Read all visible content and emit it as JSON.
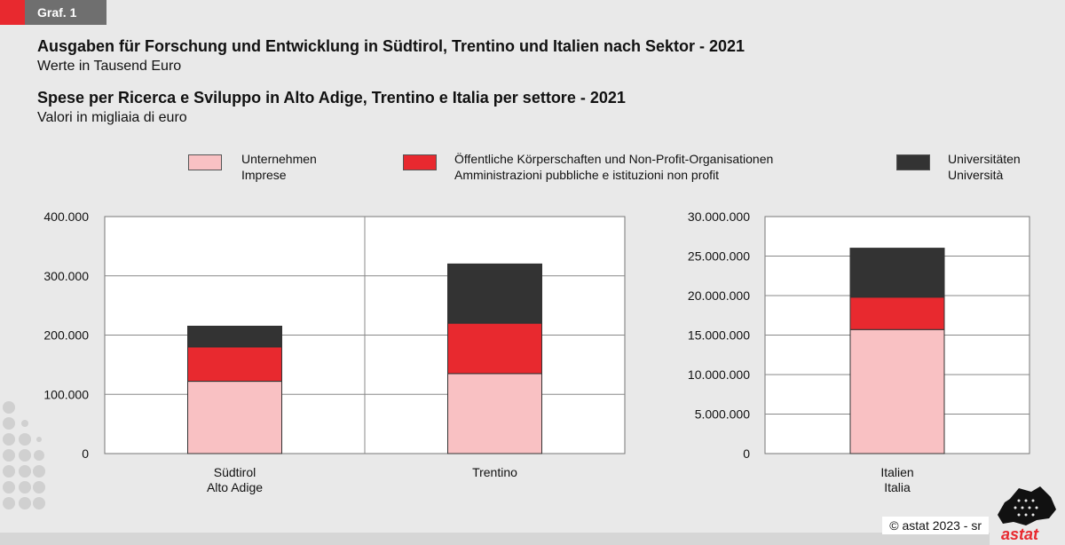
{
  "header": {
    "graf_label": "Graf. 1",
    "title_de": "Ausgaben für Forschung und Entwicklung in Südtirol, Trentino und Italien nach Sektor - 2021",
    "subtitle_de": "Werte in Tausend Euro",
    "title_it": "Spese per Ricerca e Sviluppo in Alto Adige, Trentino e Italia per settore - 2021",
    "subtitle_it": "Valori in migliaia di euro"
  },
  "legend": [
    {
      "line1": "Unternehmen",
      "line2": "Imprese",
      "color": "#f9c1c3"
    },
    {
      "line1": "Öffentliche Körperschaften und Non-Profit-Organisationen",
      "line2": "Amministrazioni pubbliche e istituzioni non profit",
      "color": "#e8292f"
    },
    {
      "line1": "Universitäten",
      "line2": "Università",
      "color": "#333333"
    }
  ],
  "chart_data": [
    {
      "type": "bar",
      "stacked": true,
      "categories": [
        [
          "Südtirol",
          "Alto Adige"
        ],
        [
          "Trentino"
        ]
      ],
      "series": [
        {
          "name": "Unternehmen / Imprese",
          "values": [
            122000,
            135000
          ]
        },
        {
          "name": "Öffentliche Körperschaften und Non-Profit-Organisationen / Amministrazioni pubbliche e istituzioni non profit",
          "values": [
            58000,
            85000
          ]
        },
        {
          "name": "Universitäten / Università",
          "values": [
            35000,
            100000
          ]
        }
      ],
      "ylim": [
        0,
        400000
      ],
      "yticks": [
        "0",
        "100.000",
        "200.000",
        "300.000",
        "400.000"
      ],
      "grid": true
    },
    {
      "type": "bar",
      "stacked": true,
      "categories": [
        [
          "Italien",
          "Italia"
        ]
      ],
      "series": [
        {
          "name": "Unternehmen / Imprese",
          "values": [
            15700000
          ]
        },
        {
          "name": "Öffentliche Körperschaften und Non-Profit-Organisationen / Amministrazioni pubbliche e istituzioni non profit",
          "values": [
            4100000
          ]
        },
        {
          "name": "Universitäten / Università",
          "values": [
            6200000
          ]
        }
      ],
      "ylim": [
        0,
        30000000
      ],
      "yticks": [
        "0",
        "5.000.000",
        "10.000.000",
        "15.000.000",
        "20.000.000",
        "25.000.000",
        "30.000.000"
      ],
      "grid": true
    }
  ],
  "footer": {
    "copyright": "©  astat 2023 - sr",
    "logo": "astat"
  }
}
